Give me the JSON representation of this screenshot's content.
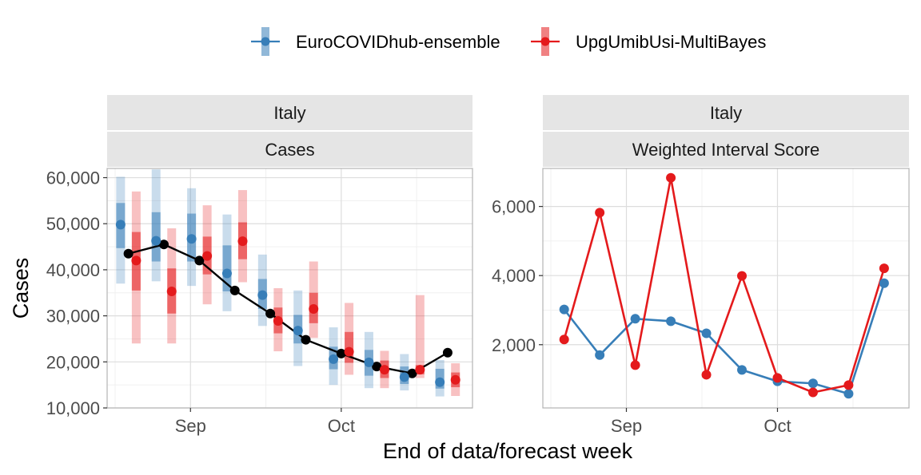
{
  "legend": {
    "items": [
      {
        "name": "EuroCOVIDhub-ensemble",
        "color": "#377EB8"
      },
      {
        "name": "UpgUmibUsi-MultiBayes",
        "color": "#E41A1C"
      }
    ]
  },
  "xlabel": "End of data/forecast week",
  "observed_color": "#000000",
  "chart_data": [
    {
      "type": "line",
      "strip_top": "Italy",
      "strip_bottom": "Cases",
      "ylabel": "Cases",
      "ylim": [
        10000,
        62000
      ],
      "yticks": [
        10000,
        20000,
        30000,
        40000,
        50000,
        60000
      ],
      "ytick_labels": [
        "10,000",
        "20,000",
        "30,000",
        "40,000",
        "50,000",
        "60,000"
      ],
      "xticks": [
        {
          "week": 2.75,
          "label": "Sep"
        },
        {
          "week": 7.0,
          "label": "Oct"
        }
      ],
      "xlim": [
        0.4,
        10.7
      ],
      "grid": true,
      "weeks": [
        1,
        2,
        3,
        4,
        5,
        6,
        7,
        8,
        9,
        10
      ],
      "observed": [
        43500,
        45500,
        42000,
        35500,
        30500,
        24800,
        21800,
        19000,
        17500,
        22000
      ],
      "series": [
        {
          "name": "EuroCOVIDhub-ensemble",
          "median": [
            49800,
            46300,
            46700,
            39200,
            34500,
            26800,
            20600,
            19900,
            16700,
            15600
          ],
          "outer": [
            [
              37000,
              60200
            ],
            [
              37500,
              61800
            ],
            [
              36500,
              57700
            ],
            [
              31000,
              52000
            ],
            [
              27800,
              43300
            ],
            [
              19100,
              35500
            ],
            [
              15000,
              27500
            ],
            [
              14300,
              26500
            ],
            [
              13800,
              21700
            ],
            [
              12500,
              20400
            ]
          ],
          "inner": [
            [
              44700,
              54500
            ],
            [
              41800,
              52500
            ],
            [
              41800,
              52200
            ],
            [
              35300,
              45300
            ],
            [
              31500,
              38000
            ],
            [
              24000,
              30200
            ],
            [
              18400,
              23300
            ],
            [
              17000,
              22600
            ],
            [
              15200,
              19000
            ],
            [
              14200,
              18500
            ]
          ]
        },
        {
          "name": "UpgUmibUsi-MultiBayes",
          "median": [
            42000,
            35300,
            43000,
            46200,
            28900,
            31500,
            22200,
            18300,
            18300,
            16100
          ],
          "outer": [
            [
              24000,
              57000
            ],
            [
              24000,
              49000
            ],
            [
              32500,
              54000
            ],
            [
              37300,
              57300
            ],
            [
              22300,
              36000
            ],
            [
              25200,
              41800
            ],
            [
              17200,
              32800
            ],
            [
              14300,
              22400
            ],
            [
              16500,
              34500
            ],
            [
              12600,
              19700
            ]
          ],
          "inner": [
            [
              35500,
              48200
            ],
            [
              30500,
              40300
            ],
            [
              39000,
              47200
            ],
            [
              42300,
              50300
            ],
            [
              26200,
              31800
            ],
            [
              28400,
              35000
            ],
            [
              19800,
              26500
            ],
            [
              16500,
              20300
            ],
            [
              17300,
              19300
            ],
            [
              14500,
              17700
            ]
          ]
        }
      ]
    },
    {
      "type": "line",
      "strip_top": "Italy",
      "strip_bottom": "Weighted Interval Score",
      "ylim": [
        170,
        7100
      ],
      "yticks": [
        2000,
        4000,
        6000
      ],
      "ytick_labels": [
        "2,000",
        "4,000",
        "6,000"
      ],
      "xticks": [
        {
          "week": 2.75,
          "label": "Sep"
        },
        {
          "week": 7.0,
          "label": "Oct"
        }
      ],
      "xlim": [
        0.4,
        10.7
      ],
      "grid": true,
      "weeks": [
        1,
        2,
        3,
        4,
        5,
        6,
        7,
        8,
        9,
        10
      ],
      "series": [
        {
          "name": "EuroCOVIDhub-ensemble",
          "values": [
            3020,
            1700,
            2750,
            2680,
            2330,
            1270,
            940,
            880,
            580,
            3780
          ]
        },
        {
          "name": "UpgUmibUsi-MultiBayes",
          "values": [
            2150,
            5820,
            1410,
            6830,
            1130,
            3990,
            1040,
            620,
            830,
            4210
          ]
        }
      ]
    }
  ]
}
